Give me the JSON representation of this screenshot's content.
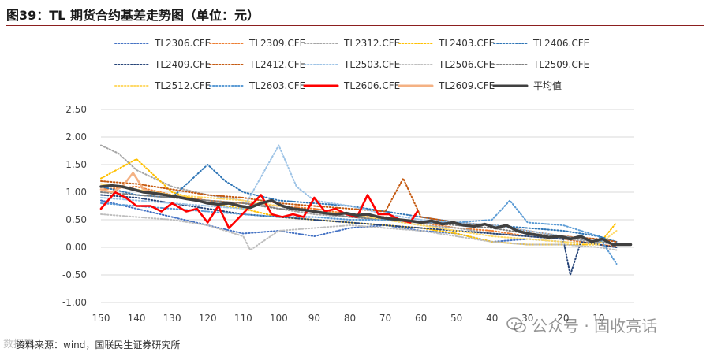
{
  "figure": {
    "title": "图39：TL 期货合约基差走势图（单位：元）",
    "source": "资料来源：wind，国联民生证券研究所",
    "watermark_left": "数据猎",
    "watermark_right": "公众号 · 固收亮话",
    "watermark_icon": "wechat-icon"
  },
  "chart_data": {
    "type": "line",
    "title": "",
    "xlabel": "",
    "ylabel": "",
    "xlim": [
      150,
      0
    ],
    "ylim": [
      -1.0,
      2.5
    ],
    "x_ticks": [
      150,
      140,
      130,
      120,
      110,
      100,
      90,
      80,
      70,
      60,
      50,
      40,
      30,
      20,
      10
    ],
    "y_ticks": [
      "2.50",
      "2.00",
      "1.50",
      "1.00",
      "0.50",
      "0.00",
      "-0.50",
      "-1.00"
    ],
    "grid": "horizontal",
    "legend_position": "top",
    "series": [
      {
        "name": "TL2306.CFE",
        "color": "#4472c4",
        "style": "dotted",
        "points": [
          [
            150,
            0.85
          ],
          [
            140,
            0.7
          ],
          [
            130,
            0.55
          ],
          [
            120,
            0.4
          ],
          [
            110,
            0.25
          ],
          [
            100,
            0.3
          ],
          [
            90,
            0.2
          ],
          [
            80,
            0.35
          ],
          [
            70,
            0.4
          ],
          [
            60,
            0.3
          ],
          [
            50,
            0.25
          ],
          [
            40,
            0.1
          ],
          [
            30,
            0.15
          ],
          [
            20,
            0.1
          ],
          [
            10,
            0.05
          ],
          [
            5,
            0.0
          ]
        ]
      },
      {
        "name": "TL2309.CFE",
        "color": "#ed7d31",
        "style": "dotted",
        "points": [
          [
            150,
            1.05
          ],
          [
            140,
            1.1
          ],
          [
            130,
            0.95
          ],
          [
            120,
            0.85
          ],
          [
            110,
            0.8
          ],
          [
            100,
            0.75
          ],
          [
            90,
            0.7
          ],
          [
            80,
            0.6
          ],
          [
            70,
            0.55
          ],
          [
            60,
            0.45
          ],
          [
            50,
            0.35
          ],
          [
            40,
            0.3
          ],
          [
            30,
            0.2
          ],
          [
            20,
            0.15
          ],
          [
            10,
            0.05
          ],
          [
            5,
            0.02
          ]
        ]
      },
      {
        "name": "TL2312.CFE",
        "color": "#a5a5a5",
        "style": "dotted",
        "points": [
          [
            150,
            1.85
          ],
          [
            145,
            1.7
          ],
          [
            140,
            1.4
          ],
          [
            130,
            1.1
          ],
          [
            120,
            0.95
          ],
          [
            110,
            0.85
          ],
          [
            100,
            0.7
          ],
          [
            90,
            0.6
          ],
          [
            80,
            0.55
          ],
          [
            70,
            0.5
          ],
          [
            60,
            0.4
          ],
          [
            50,
            0.35
          ],
          [
            40,
            0.25
          ],
          [
            30,
            0.2
          ],
          [
            20,
            0.15
          ],
          [
            10,
            0.1
          ],
          [
            5,
            0.05
          ]
        ]
      },
      {
        "name": "TL2403.CFE",
        "color": "#ffc000",
        "style": "dotted",
        "points": [
          [
            150,
            1.25
          ],
          [
            140,
            1.6
          ],
          [
            135,
            1.3
          ],
          [
            130,
            1.0
          ],
          [
            120,
            0.8
          ],
          [
            110,
            0.7
          ],
          [
            100,
            0.55
          ],
          [
            90,
            0.5
          ],
          [
            80,
            0.45
          ],
          [
            70,
            0.4
          ],
          [
            60,
            0.35
          ],
          [
            50,
            0.25
          ],
          [
            40,
            0.1
          ],
          [
            30,
            0.05
          ],
          [
            20,
            0.05
          ],
          [
            10,
            0.05
          ],
          [
            5,
            0.45
          ]
        ]
      },
      {
        "name": "TL2406.CFE",
        "color": "#2e75b6",
        "style": "dotted",
        "points": [
          [
            150,
            1.1
          ],
          [
            140,
            0.95
          ],
          [
            130,
            0.9
          ],
          [
            120,
            1.5
          ],
          [
            115,
            1.2
          ],
          [
            110,
            1.0
          ],
          [
            100,
            0.85
          ],
          [
            90,
            0.8
          ],
          [
            80,
            0.75
          ],
          [
            70,
            0.65
          ],
          [
            60,
            0.55
          ],
          [
            50,
            0.45
          ],
          [
            40,
            0.4
          ],
          [
            30,
            0.35
          ],
          [
            20,
            0.3
          ],
          [
            10,
            0.2
          ],
          [
            5,
            0.1
          ]
        ]
      },
      {
        "name": "TL2409.CFE",
        "color": "#264478",
        "style": "dotted",
        "points": [
          [
            150,
            0.95
          ],
          [
            140,
            0.9
          ],
          [
            130,
            0.8
          ],
          [
            120,
            0.7
          ],
          [
            110,
            0.6
          ],
          [
            100,
            0.55
          ],
          [
            90,
            0.5
          ],
          [
            80,
            0.45
          ],
          [
            70,
            0.4
          ],
          [
            60,
            0.35
          ],
          [
            50,
            0.3
          ],
          [
            40,
            0.25
          ],
          [
            30,
            0.2
          ],
          [
            20,
            0.15
          ],
          [
            18,
            -0.5
          ],
          [
            15,
            0.1
          ],
          [
            10,
            0.05
          ],
          [
            5,
            0.0
          ]
        ]
      },
      {
        "name": "TL2412.CFE",
        "color": "#c55a11",
        "style": "dotted",
        "points": [
          [
            150,
            1.2
          ],
          [
            140,
            1.15
          ],
          [
            130,
            1.05
          ],
          [
            120,
            0.95
          ],
          [
            110,
            0.9
          ],
          [
            100,
            0.8
          ],
          [
            90,
            0.75
          ],
          [
            80,
            0.7
          ],
          [
            70,
            0.65
          ],
          [
            65,
            1.25
          ],
          [
            60,
            0.55
          ],
          [
            50,
            0.45
          ],
          [
            40,
            0.4
          ],
          [
            30,
            0.3
          ],
          [
            20,
            0.2
          ],
          [
            10,
            0.15
          ],
          [
            5,
            0.1
          ]
        ]
      },
      {
        "name": "TL2503.CFE",
        "color": "#9dc3e6",
        "style": "dotted",
        "points": [
          [
            150,
            0.9
          ],
          [
            140,
            0.85
          ],
          [
            130,
            0.8
          ],
          [
            120,
            0.75
          ],
          [
            110,
            0.7
          ],
          [
            100,
            1.85
          ],
          [
            95,
            1.1
          ],
          [
            90,
            0.85
          ],
          [
            80,
            0.75
          ],
          [
            70,
            0.6
          ],
          [
            60,
            0.5
          ],
          [
            50,
            0.45
          ],
          [
            40,
            0.4
          ],
          [
            30,
            0.3
          ],
          [
            20,
            0.2
          ],
          [
            10,
            0.1
          ],
          [
            5,
            0.05
          ]
        ]
      },
      {
        "name": "TL2506.CFE",
        "color": "#bfbfbf",
        "style": "dotted",
        "points": [
          [
            150,
            0.6
          ],
          [
            140,
            0.55
          ],
          [
            130,
            0.5
          ],
          [
            120,
            0.4
          ],
          [
            110,
            0.2
          ],
          [
            108,
            -0.05
          ],
          [
            100,
            0.3
          ],
          [
            90,
            0.35
          ],
          [
            80,
            0.4
          ],
          [
            70,
            0.35
          ],
          [
            60,
            0.3
          ],
          [
            50,
            0.2
          ],
          [
            40,
            0.1
          ],
          [
            30,
            0.05
          ],
          [
            20,
            0.05
          ],
          [
            10,
            0.0
          ],
          [
            5,
            -0.05
          ]
        ]
      },
      {
        "name": "TL2509.CFE",
        "color": "#7f7f7f",
        "style": "dotted",
        "points": [
          [
            150,
            1.0
          ],
          [
            140,
            0.95
          ],
          [
            130,
            0.9
          ],
          [
            120,
            0.85
          ],
          [
            110,
            0.8
          ],
          [
            100,
            0.7
          ],
          [
            90,
            0.65
          ],
          [
            80,
            0.55
          ],
          [
            70,
            0.5
          ],
          [
            60,
            0.45
          ],
          [
            50,
            0.4
          ],
          [
            40,
            0.35
          ],
          [
            30,
            0.25
          ],
          [
            20,
            0.2
          ],
          [
            10,
            0.1
          ],
          [
            5,
            0.05
          ]
        ]
      },
      {
        "name": "TL2512.CFE",
        "color": "#ffd966",
        "style": "dotted",
        "points": [
          [
            150,
            1.15
          ],
          [
            140,
            1.05
          ],
          [
            130,
            0.95
          ],
          [
            120,
            0.9
          ],
          [
            110,
            0.85
          ],
          [
            100,
            0.75
          ],
          [
            90,
            0.65
          ],
          [
            80,
            0.6
          ],
          [
            70,
            0.5
          ],
          [
            60,
            0.4
          ],
          [
            50,
            0.3
          ],
          [
            40,
            0.2
          ],
          [
            30,
            0.15
          ],
          [
            20,
            0.1
          ],
          [
            10,
            0.05
          ],
          [
            5,
            0.3
          ]
        ]
      },
      {
        "name": "TL2603.CFE",
        "color": "#5b9bd5",
        "style": "dotted",
        "points": [
          [
            150,
            0.8
          ],
          [
            140,
            0.75
          ],
          [
            130,
            0.7
          ],
          [
            120,
            0.65
          ],
          [
            110,
            0.6
          ],
          [
            100,
            0.55
          ],
          [
            90,
            0.55
          ],
          [
            80,
            0.5
          ],
          [
            70,
            0.5
          ],
          [
            60,
            0.45
          ],
          [
            50,
            0.45
          ],
          [
            40,
            0.5
          ],
          [
            35,
            0.85
          ],
          [
            30,
            0.45
          ],
          [
            20,
            0.4
          ],
          [
            10,
            0.2
          ],
          [
            5,
            -0.3
          ]
        ]
      },
      {
        "name": "TL2606.CFE",
        "color": "#ff0000",
        "style": "solid",
        "points": [
          [
            150,
            0.7
          ],
          [
            146,
            1.0
          ],
          [
            143,
            0.9
          ],
          [
            140,
            0.75
          ],
          [
            136,
            0.75
          ],
          [
            133,
            0.65
          ],
          [
            130,
            0.8
          ],
          [
            126,
            0.65
          ],
          [
            123,
            0.7
          ],
          [
            120,
            0.45
          ],
          [
            117,
            0.75
          ],
          [
            114,
            0.35
          ],
          [
            111,
            0.55
          ],
          [
            108,
            0.75
          ],
          [
            105,
            0.95
          ],
          [
            102,
            0.6
          ],
          [
            99,
            0.55
          ],
          [
            96,
            0.6
          ],
          [
            93,
            0.55
          ],
          [
            90,
            0.9
          ],
          [
            87,
            0.65
          ],
          [
            84,
            0.7
          ],
          [
            81,
            0.6
          ],
          [
            78,
            0.55
          ],
          [
            75,
            0.95
          ],
          [
            72,
            0.6
          ],
          [
            69,
            0.6
          ],
          [
            66,
            0.5
          ],
          [
            63,
            0.45
          ],
          [
            61,
            0.65
          ]
        ]
      },
      {
        "name": "TL2609.CFE",
        "color": "#f4b183",
        "style": "solid",
        "points": [
          [
            150,
            1.05
          ],
          [
            147,
            1.0
          ],
          [
            144,
            1.1
          ],
          [
            141,
            1.35
          ],
          [
            138,
            1.05
          ],
          [
            136,
            1.0
          ]
        ]
      },
      {
        "name": "平均值",
        "color": "#404040",
        "style": "solid",
        "points": [
          [
            150,
            1.1
          ],
          [
            147,
            1.12
          ],
          [
            144,
            1.1
          ],
          [
            141,
            1.05
          ],
          [
            138,
            1.0
          ],
          [
            135,
            0.98
          ],
          [
            132,
            0.95
          ],
          [
            129,
            0.92
          ],
          [
            126,
            0.88
          ],
          [
            123,
            0.85
          ],
          [
            120,
            0.8
          ],
          [
            117,
            0.78
          ],
          [
            114,
            0.8
          ],
          [
            111,
            0.75
          ],
          [
            108,
            0.72
          ],
          [
            105,
            0.8
          ],
          [
            102,
            0.85
          ],
          [
            99,
            0.75
          ],
          [
            96,
            0.7
          ],
          [
            93,
            0.68
          ],
          [
            90,
            0.65
          ],
          [
            87,
            0.62
          ],
          [
            84,
            0.6
          ],
          [
            81,
            0.62
          ],
          [
            78,
            0.58
          ],
          [
            75,
            0.6
          ],
          [
            72,
            0.55
          ],
          [
            69,
            0.52
          ],
          [
            66,
            0.5
          ],
          [
            63,
            0.48
          ],
          [
            60,
            0.45
          ],
          [
            57,
            0.48
          ],
          [
            54,
            0.42
          ],
          [
            51,
            0.45
          ],
          [
            48,
            0.4
          ],
          [
            45,
            0.38
          ],
          [
            42,
            0.42
          ],
          [
            39,
            0.35
          ],
          [
            36,
            0.4
          ],
          [
            33,
            0.3
          ],
          [
            30,
            0.25
          ],
          [
            27,
            0.22
          ],
          [
            24,
            0.18
          ],
          [
            21,
            0.2
          ],
          [
            18,
            0.15
          ],
          [
            15,
            0.2
          ],
          [
            12,
            0.1
          ],
          [
            9,
            0.15
          ],
          [
            6,
            0.05
          ],
          [
            3,
            0.05
          ],
          [
            1,
            0.05
          ]
        ]
      }
    ]
  }
}
